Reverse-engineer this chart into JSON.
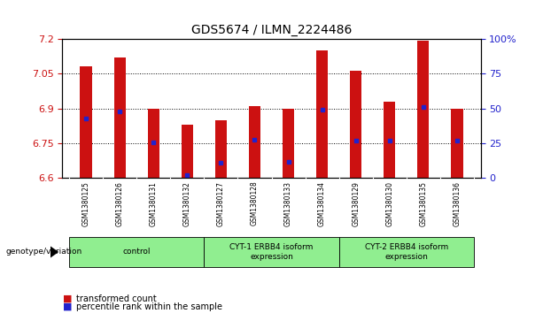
{
  "title": "GDS5674 / ILMN_2224486",
  "samples": [
    "GSM1380125",
    "GSM1380126",
    "GSM1380131",
    "GSM1380132",
    "GSM1380127",
    "GSM1380128",
    "GSM1380133",
    "GSM1380134",
    "GSM1380129",
    "GSM1380130",
    "GSM1380135",
    "GSM1380136"
  ],
  "bar_values": [
    7.08,
    7.12,
    6.9,
    6.83,
    6.85,
    6.91,
    6.9,
    7.15,
    7.06,
    6.93,
    7.19,
    6.9
  ],
  "percentile_values": [
    6.855,
    6.885,
    6.755,
    6.615,
    6.665,
    6.765,
    6.67,
    6.895,
    6.76,
    6.76,
    6.905,
    6.76
  ],
  "ylim_left": [
    6.6,
    7.2
  ],
  "yticks_left": [
    6.6,
    6.75,
    6.9,
    7.05,
    7.2
  ],
  "ylim_right": [
    0,
    100
  ],
  "yticks_right": [
    0,
    25,
    50,
    75,
    100
  ],
  "bar_color": "#cc1111",
  "dot_color": "#2222cc",
  "bar_width": 0.35,
  "groups": [
    {
      "label": "control",
      "indices": [
        0,
        1,
        2,
        3
      ]
    },
    {
      "label": "CYT-1 ERBB4 isoform\nexpression",
      "indices": [
        4,
        5,
        6,
        7
      ]
    },
    {
      "label": "CYT-2 ERBB4 isoform\nexpression",
      "indices": [
        8,
        9,
        10,
        11
      ]
    }
  ],
  "group_color": "#90ee90",
  "group_label_prefix": "genotype/variation",
  "legend_bar_label": "transformed count",
  "legend_dot_label": "percentile rank within the sample",
  "tick_label_color_left": "#cc1111",
  "tick_label_color_right": "#2222cc",
  "background_plot": "#ffffff",
  "background_sample": "#c8c8c8",
  "title_fontsize": 10
}
